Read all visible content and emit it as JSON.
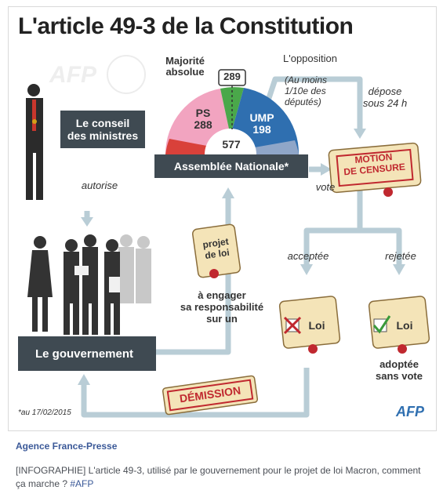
{
  "infographic": {
    "title": "L'article 49-3 de la Constitution",
    "watermark": "AFP",
    "majorite_label": "Majorité absolue",
    "majorite_value": "289",
    "ps_label": "PS",
    "ps_value": "288",
    "ump_label": "UMP",
    "ump_value": "198",
    "total_value": "577",
    "opposition_label": "L'opposition",
    "opposition_detail_1": "(Au moins",
    "opposition_detail_2": "1/10e des",
    "opposition_detail_3": "députés)",
    "depose_1": "dépose",
    "depose_2": "sous 24 h",
    "conseil_1": "Le conseil",
    "conseil_2": "des ministres",
    "assemblee": "Assemblée Nationale*",
    "motion_1": "MOTION",
    "motion_2": "DE CENSURE",
    "vote": "vote",
    "autorise": "autorise",
    "projet_1": "projet",
    "projet_2": "de loi",
    "engager_1": "à engager",
    "engager_2": "sa responsabilité",
    "engager_3": "sur un",
    "acceptee": "acceptée",
    "rejetee": "rejetée",
    "loi_left": "Loi",
    "loi_right": "Loi",
    "adoptee_1": "adoptée",
    "adoptee_2": "sans vote",
    "gouvernement": "Le gouvernement",
    "demission": "DÉMISSION",
    "footnote": "*au 17/02/2015",
    "logo": "AFP"
  },
  "post": {
    "source": "Agence France-Presse",
    "caption_text": "[INFOGRAPHIE] L'article 49-3, utilisé par le gouvernement pour le projet de loi Macron, comment ça marche ? ",
    "hashtag": "#AFP"
  },
  "colors": {
    "dark_box": "#3f4a52",
    "arrow": "#b9cdd6",
    "ps": "#f2a4c0",
    "ump": "#2f6fb0",
    "stamp_red": "#c0282f",
    "check_green": "#3a9a3a",
    "parchment": "#f4e4b8",
    "link": "#3b5998"
  }
}
